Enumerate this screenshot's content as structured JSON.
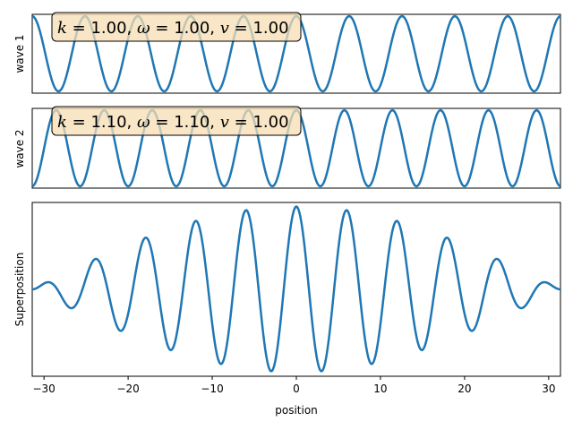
{
  "colors": {
    "line": "#1f77b4",
    "box_fill": "#f5deb3",
    "box_edge": "#000000",
    "background": "#ffffff"
  },
  "chart_data": [
    {
      "type": "line",
      "ylabel": "wave 1",
      "params": {
        "k": "1.00",
        "omega": "1.00",
        "v": "1.00"
      },
      "function": "cos(1.00 * x)",
      "xlim": [
        -31.4,
        31.4
      ],
      "ylim": [
        -1.05,
        1.05
      ],
      "show_ticks": false
    },
    {
      "type": "line",
      "ylabel": "wave 2",
      "params": {
        "k": "1.10",
        "omega": "1.10",
        "v": "1.00"
      },
      "function": "cos(1.10 * x)",
      "xlim": [
        -31.4,
        31.4
      ],
      "ylim": [
        -1.05,
        1.05
      ],
      "show_ticks": false
    },
    {
      "type": "line",
      "ylabel": "Superposition",
      "xlabel": "position",
      "function": "cos(1.00 * x) + cos(1.10 * x)",
      "xlim": [
        -31.4,
        31.4
      ],
      "ylim": [
        -2.1,
        2.1
      ],
      "xticks": [
        -30,
        -20,
        -10,
        0,
        10,
        20,
        30
      ],
      "xtick_labels": [
        "−30",
        "−20",
        "−10",
        "0",
        "10",
        "20",
        "30"
      ]
    }
  ]
}
